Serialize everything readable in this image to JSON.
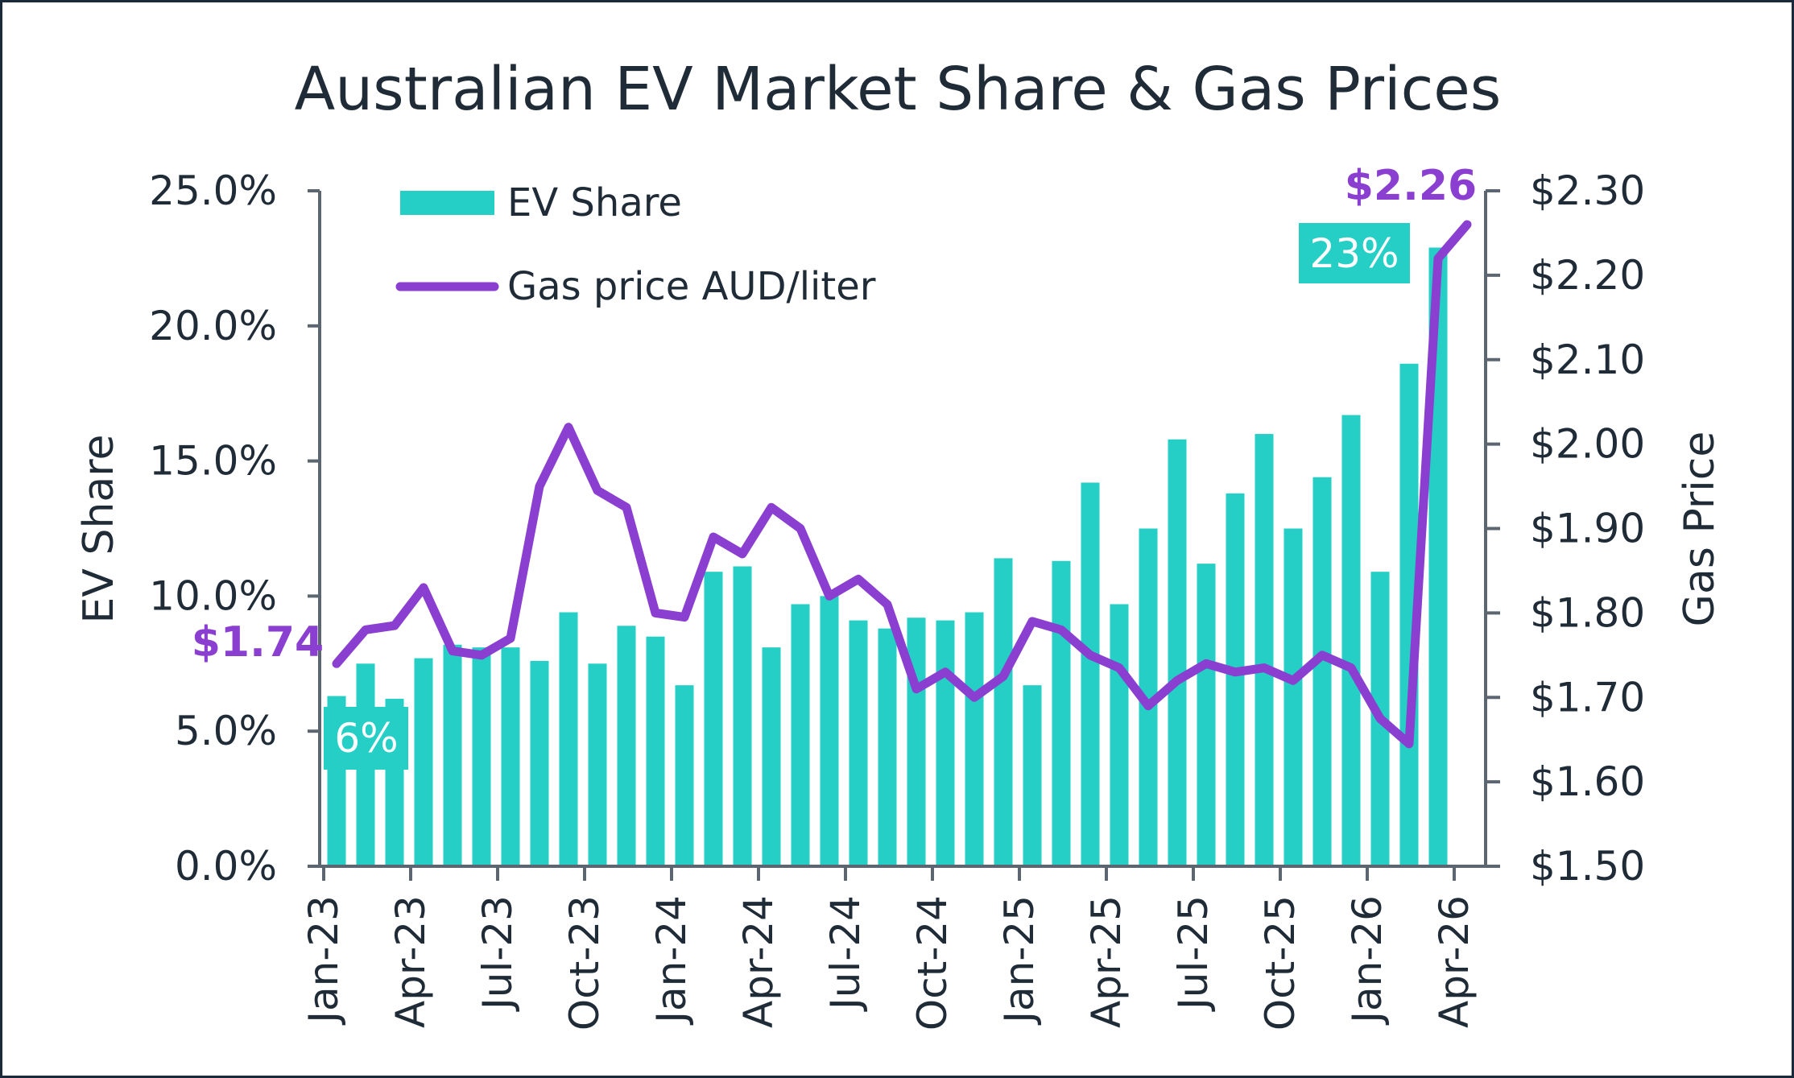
{
  "chart_data": {
    "type": "bar+line",
    "title": "Australian EV Market Share & Gas Prices",
    "ylabel": "EV Share",
    "y2label": "Gas Price",
    "ylim": [
      0,
      25
    ],
    "y2lim": [
      1.5,
      2.3
    ],
    "yticks": [
      "0.0%",
      "5.0%",
      "10.0%",
      "15.0%",
      "20.0%",
      "25.0%"
    ],
    "y2ticks": [
      "$1.50",
      "$1.60",
      "$1.70",
      "$1.80",
      "$1.90",
      "$2.00",
      "$2.10",
      "$2.20",
      "$2.30"
    ],
    "xticks": [
      "Jan-23",
      "Apr-23",
      "Jul-23",
      "Oct-23",
      "Jan-24",
      "Apr-24",
      "Jul-24",
      "Oct-24",
      "Jan-25",
      "Apr-25",
      "Jul-25",
      "Oct-25",
      "Jan-26",
      "Apr-26"
    ],
    "legend_position": "top-left",
    "series": [
      {
        "name": "EV Share",
        "type": "bar",
        "axis": "left",
        "color": "#26CFC5",
        "values": [
          6.3,
          7.5,
          6.2,
          7.7,
          8.2,
          8.1,
          8.1,
          7.6,
          9.4,
          7.5,
          8.9,
          8.5,
          6.7,
          10.9,
          11.1,
          8.1,
          9.7,
          10.0,
          9.1,
          8.8,
          9.2,
          9.1,
          9.4,
          11.4,
          6.7,
          11.3,
          14.2,
          9.7,
          12.5,
          15.8,
          11.2,
          13.8,
          16.0,
          12.5,
          14.4,
          16.7,
          10.9,
          18.6,
          22.9
        ]
      },
      {
        "name": "Gas price AUD/liter",
        "type": "line",
        "axis": "right",
        "color": "#8B3FD0",
        "values": [
          1.74,
          1.78,
          1.785,
          1.83,
          1.755,
          1.75,
          1.77,
          1.95,
          2.02,
          1.945,
          1.925,
          1.8,
          1.795,
          1.89,
          1.87,
          1.925,
          1.9,
          1.82,
          1.84,
          1.81,
          1.71,
          1.73,
          1.7,
          1.725,
          1.79,
          1.78,
          1.75,
          1.735,
          1.69,
          1.72,
          1.74,
          1.73,
          1.735,
          1.72,
          1.75,
          1.735,
          1.675,
          1.645,
          2.22,
          2.26
        ]
      }
    ],
    "annotations": {
      "first_gas": "$1.74",
      "last_gas": "$2.26",
      "first_ev": "6%",
      "last_ev": "23%"
    }
  }
}
